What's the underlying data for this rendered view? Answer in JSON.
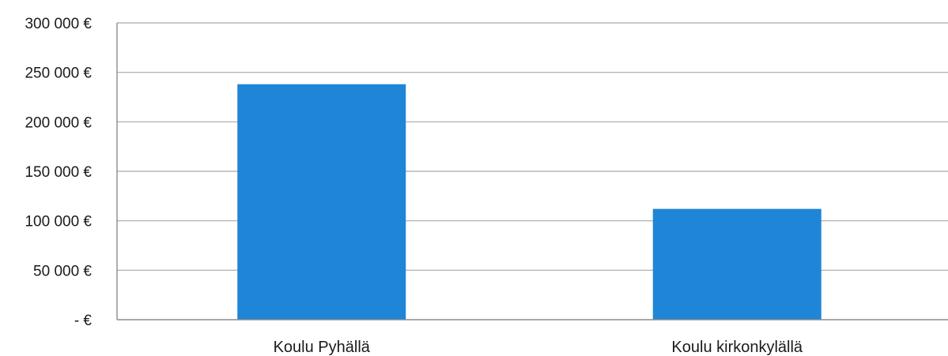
{
  "chart_data": {
    "type": "bar",
    "title": "",
    "xlabel": "",
    "ylabel": "",
    "categories": [
      "Koulu Pyhällä",
      "Koulu kirkonkylällä"
    ],
    "values": [
      238000,
      112000
    ],
    "ylim": [
      0,
      300000
    ],
    "yticks": [
      0,
      50000,
      100000,
      150000,
      200000,
      250000,
      300000
    ],
    "ytick_labels": [
      "-   €",
      "50 000 €",
      "100 000 €",
      "150 000 €",
      "200 000 €",
      "250 000 €",
      "300 000 €"
    ],
    "grid": true,
    "legend": "none",
    "bar_color": "#1f85d6"
  }
}
